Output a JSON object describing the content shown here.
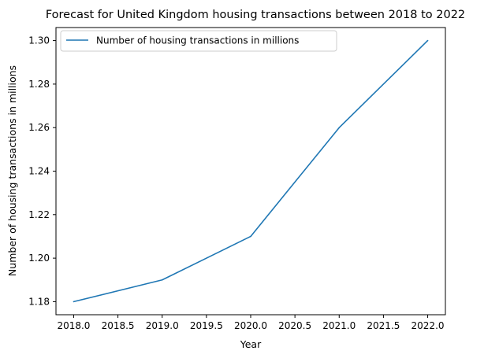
{
  "chart_data": {
    "type": "line",
    "title": "Forecast for United Kingdom housing transactions between 2018 to 2022",
    "xlabel": "Year",
    "ylabel": "Number of housing transactions in millions",
    "x": [
      2018,
      2019,
      2020,
      2021,
      2022
    ],
    "series": [
      {
        "name": "Number of housing transactions in millions",
        "values": [
          1.18,
          1.19,
          1.21,
          1.26,
          1.3
        ],
        "color": "#1f77b4"
      }
    ],
    "xlim": [
      2017.8,
      2022.2
    ],
    "ylim": [
      1.174,
      1.306
    ],
    "x_ticks": [
      "2018.0",
      "2018.5",
      "2019.0",
      "2019.5",
      "2020.0",
      "2020.5",
      "2021.0",
      "2021.5",
      "2022.0"
    ],
    "y_ticks": [
      "1.18",
      "1.20",
      "1.22",
      "1.24",
      "1.26",
      "1.28",
      "1.30"
    ],
    "grid": false,
    "legend_position": "top-left"
  }
}
